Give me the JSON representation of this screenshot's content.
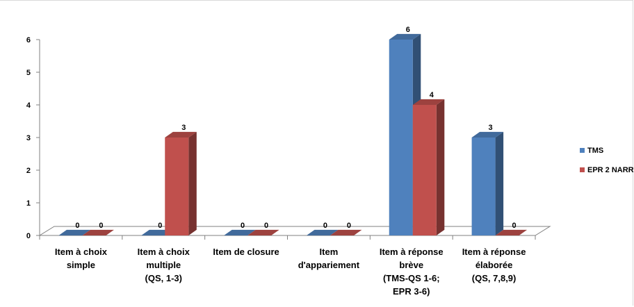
{
  "chart_data": {
    "type": "bar",
    "style": "3d-clustered-column",
    "categories": [
      [
        "Item à choix",
        "simple"
      ],
      [
        "Item à choix",
        "multiple",
        "(QS, 1-3)"
      ],
      [
        "Item de closure"
      ],
      [
        "Item",
        "d'appariement"
      ],
      [
        "Item à réponse",
        "brève",
        "(TMS-QS 1-6;",
        "EPR 3-6)"
      ],
      [
        "Item à réponse",
        "élaborée",
        "(QS, 7,8,9)"
      ]
    ],
    "series": [
      {
        "name": "TMS",
        "values": [
          0,
          0,
          0,
          0,
          6,
          3
        ],
        "color": "#4F81BD"
      },
      {
        "name": "EPR 2 NARR",
        "values": [
          0,
          3,
          0,
          0,
          4,
          0
        ],
        "color": "#C0504D"
      }
    ],
    "yticks": [
      "0",
      "1",
      "2",
      "3",
      "4",
      "5",
      "6"
    ],
    "ylim": [
      0,
      6
    ],
    "legend_position": "right",
    "grid": false,
    "title": "",
    "xlabel": "",
    "ylabel": ""
  }
}
